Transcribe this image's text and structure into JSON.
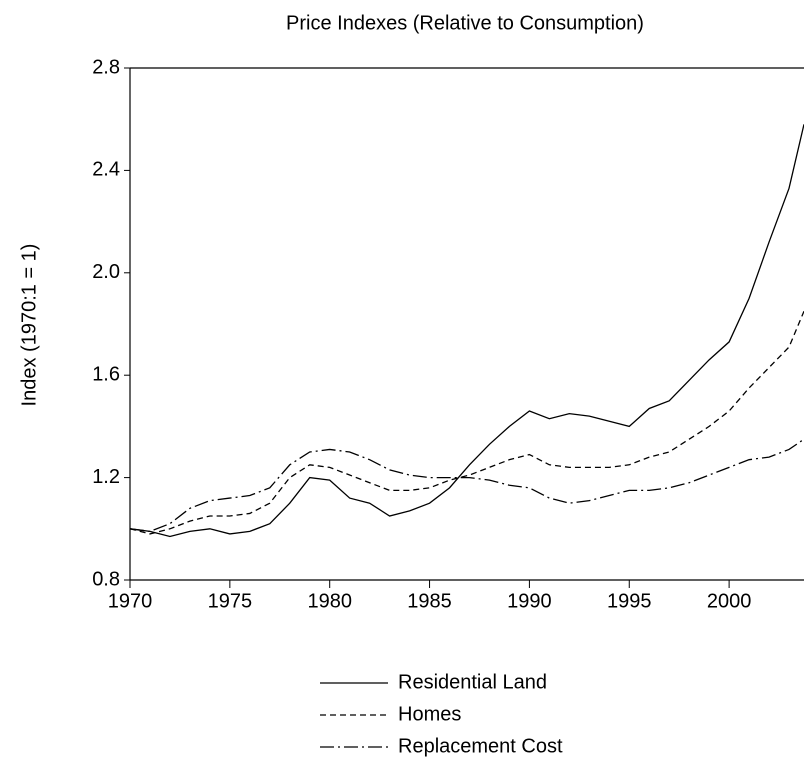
{
  "chart_data": {
    "type": "line",
    "title": "Price Indexes (Relative to Consumption)",
    "y_label": "Index (1970:1 = 1)",
    "x": [
      1970,
      1971,
      1972,
      1973,
      1974,
      1975,
      1976,
      1977,
      1978,
      1979,
      1980,
      1981,
      1982,
      1983,
      1984,
      1985,
      1986,
      1987,
      1988,
      1989,
      1990,
      1991,
      1992,
      1993,
      1994,
      1995,
      1996,
      1997,
      1998,
      1999,
      2000,
      2001,
      2002,
      2003,
      2003.75
    ],
    "series": [
      {
        "name": "Residential Land",
        "color": "#000000",
        "dash": "solid",
        "values": [
          1.0,
          0.99,
          0.97,
          0.99,
          1.0,
          0.98,
          0.99,
          1.02,
          1.1,
          1.2,
          1.19,
          1.12,
          1.1,
          1.05,
          1.07,
          1.1,
          1.16,
          1.25,
          1.33,
          1.4,
          1.46,
          1.43,
          1.45,
          1.44,
          1.42,
          1.4,
          1.47,
          1.5,
          1.58,
          1.66,
          1.73,
          1.9,
          2.12,
          2.33,
          2.58
        ]
      },
      {
        "name": "Homes",
        "color": "#000000",
        "dash": "dashed",
        "values": [
          1.0,
          0.98,
          1.0,
          1.03,
          1.05,
          1.05,
          1.06,
          1.1,
          1.2,
          1.25,
          1.24,
          1.21,
          1.18,
          1.15,
          1.15,
          1.16,
          1.19,
          1.21,
          1.24,
          1.27,
          1.29,
          1.25,
          1.24,
          1.24,
          1.24,
          1.25,
          1.28,
          1.3,
          1.35,
          1.4,
          1.46,
          1.55,
          1.63,
          1.71,
          1.85
        ]
      },
      {
        "name": "Replacement Cost",
        "color": "#000000",
        "dash": "dashdot",
        "values": [
          1.0,
          0.99,
          1.02,
          1.08,
          1.11,
          1.12,
          1.13,
          1.16,
          1.25,
          1.3,
          1.31,
          1.3,
          1.27,
          1.23,
          1.21,
          1.2,
          1.2,
          1.2,
          1.19,
          1.17,
          1.16,
          1.12,
          1.1,
          1.11,
          1.13,
          1.15,
          1.15,
          1.16,
          1.18,
          1.21,
          1.24,
          1.27,
          1.28,
          1.31,
          1.35
        ]
      }
    ],
    "xlim": [
      1970,
      2003.75
    ],
    "xticks": [
      1970,
      1975,
      1980,
      1985,
      1990,
      1995,
      2000
    ],
    "ylim": [
      0.8,
      2.8
    ],
    "yticks": [
      0.8,
      1.2,
      1.6,
      {
        "value": 2,
        "label": "2.0"
      },
      2.4,
      2.8
    ],
    "grid": false,
    "legend": "bottom"
  }
}
